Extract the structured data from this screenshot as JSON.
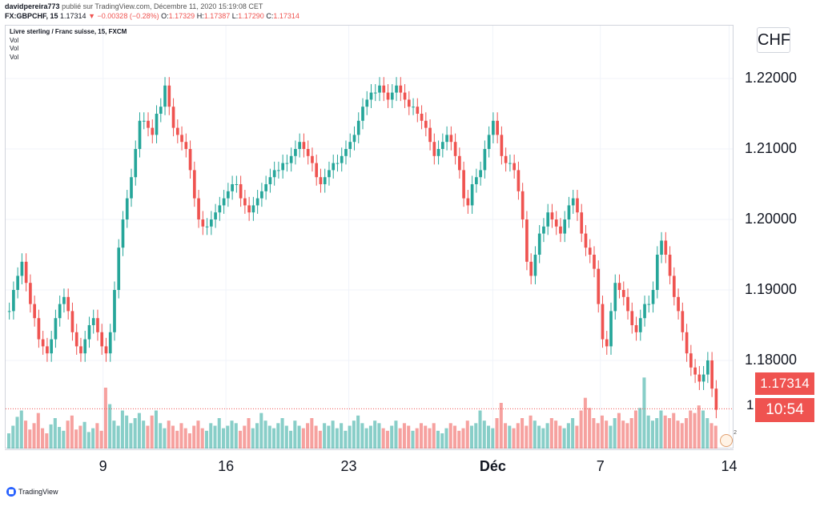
{
  "header": {
    "author_line": "davidpereira773",
    "published_text": "publié sur TradingView.com, Décembre 11, 2020 15:19:08 CET",
    "symbol_line": "FX:GBPCHF, 15",
    "last_price": "1.17314",
    "change": "−0.00328 (−0.28%)",
    "o_label": "O:",
    "o_value": "1.17329",
    "h_label": "H:",
    "h_value": "1.17387",
    "l_label": "L:",
    "l_value": "1.17290",
    "c_label": "C:",
    "c_value": "1.17314"
  },
  "legend": {
    "title": "Livre sterling / Franc suisse, 15, FXCM",
    "vol1": "Vol",
    "vol2": "Vol",
    "vol3": "Vol"
  },
  "price_axis": {
    "currency": "CHF",
    "current_price": "1.17314",
    "countdown": "10:54",
    "partial_label": "1"
  },
  "footer": {
    "brand": "TradingView"
  },
  "colors": {
    "up": "#26a69a",
    "down": "#ef5350",
    "grid": "#f0f3fa",
    "axis": "#d1d4dc"
  },
  "chart_data": {
    "type": "line",
    "title": "Livre sterling / Franc suisse, 15, FXCM",
    "xlabel": "",
    "ylabel": "",
    "ylim": [
      1.1675,
      1.2275
    ],
    "y_ticks": [
      "1.22000",
      "1.21000",
      "1.20000",
      "1.19000",
      "1.18000"
    ],
    "y_tick_values": [
      1.22,
      1.21,
      1.2,
      1.19,
      1.18
    ],
    "x_ticks": [
      "9",
      "16",
      "23",
      "Déc",
      "7",
      "14"
    ],
    "x_tick_positions_frac": [
      0.134,
      0.303,
      0.472,
      0.67,
      0.818,
      0.995
    ],
    "series": [
      {
        "values": [
          1.187,
          1.19,
          1.192,
          1.194,
          1.191,
          1.188,
          1.186,
          1.183,
          1.182,
          1.181,
          1.183,
          1.186,
          1.188,
          1.189,
          1.187,
          1.184,
          1.182,
          1.181,
          1.183,
          1.185,
          1.186,
          1.184,
          1.182,
          1.181,
          1.184,
          1.19,
          1.196,
          1.2,
          1.203,
          1.206,
          1.21,
          1.214,
          1.214,
          1.213,
          1.212,
          1.215,
          1.216,
          1.219,
          1.216,
          1.213,
          1.212,
          1.211,
          1.21,
          1.207,
          1.203,
          1.2,
          1.199,
          1.199,
          1.2,
          1.201,
          1.202,
          1.203,
          1.204,
          1.205,
          1.205,
          1.203,
          1.202,
          1.201,
          1.202,
          1.203,
          1.204,
          1.205,
          1.206,
          1.207,
          1.207,
          1.208,
          1.208,
          1.209,
          1.21,
          1.211,
          1.21,
          1.209,
          1.208,
          1.206,
          1.205,
          1.206,
          1.207,
          1.208,
          1.208,
          1.209,
          1.21,
          1.211,
          1.212,
          1.214,
          1.216,
          1.217,
          1.218,
          1.218,
          1.219,
          1.218,
          1.217,
          1.218,
          1.219,
          1.218,
          1.217,
          1.216,
          1.216,
          1.215,
          1.214,
          1.213,
          1.211,
          1.209,
          1.21,
          1.211,
          1.212,
          1.211,
          1.209,
          1.207,
          1.203,
          1.202,
          1.205,
          1.206,
          1.207,
          1.21,
          1.212,
          1.214,
          1.212,
          1.209,
          1.208,
          1.208,
          1.207,
          1.204,
          1.2,
          1.194,
          1.192,
          1.195,
          1.198,
          1.199,
          1.201,
          1.2,
          1.199,
          1.198,
          1.2,
          1.202,
          1.203,
          1.201,
          1.198,
          1.196,
          1.195,
          1.193,
          1.188,
          1.183,
          1.182,
          1.187,
          1.191,
          1.19,
          1.189,
          1.187,
          1.185,
          1.184,
          1.186,
          1.188,
          1.188,
          1.19,
          1.195,
          1.197,
          1.195,
          1.192,
          1.189,
          1.187,
          1.184,
          1.181,
          1.179,
          1.178,
          1.177,
          1.178,
          1.18,
          1.176,
          1.173
        ]
      }
    ],
    "volume": [
      12,
      18,
      25,
      30,
      22,
      15,
      20,
      28,
      16,
      12,
      19,
      24,
      17,
      14,
      22,
      26,
      15,
      18,
      21,
      13,
      16,
      20,
      14,
      48,
      35,
      22,
      18,
      30,
      26,
      20,
      24,
      28,
      22,
      18,
      26,
      30,
      20,
      16,
      22,
      18,
      14,
      20,
      16,
      12,
      18,
      22,
      16,
      14,
      20,
      18,
      24,
      16,
      18,
      22,
      20,
      14,
      18,
      24,
      16,
      20,
      28,
      22,
      18,
      16,
      20,
      24,
      18,
      14,
      22,
      18,
      16,
      20,
      24,
      18,
      14,
      20,
      18,
      22,
      16,
      20,
      14,
      18,
      22,
      26,
      20,
      16,
      18,
      22,
      20,
      16,
      14,
      18,
      22,
      16,
      20,
      18,
      14,
      16,
      20,
      18,
      16,
      20,
      14,
      12,
      16,
      20,
      18,
      14,
      16,
      22,
      18,
      20,
      30,
      22,
      18,
      16,
      24,
      36,
      20,
      18,
      16,
      20,
      24,
      18,
      26,
      22,
      18,
      16,
      20,
      24,
      22,
      18,
      16,
      20,
      24,
      18,
      30,
      40,
      32,
      24,
      20,
      26,
      22,
      18,
      24,
      28,
      22,
      20,
      24,
      30,
      32,
      56,
      26,
      22,
      24,
      30,
      26,
      24,
      28,
      22,
      20,
      24,
      30,
      28,
      34,
      30,
      24,
      20,
      18
    ],
    "current_price_line": 1.17314
  }
}
